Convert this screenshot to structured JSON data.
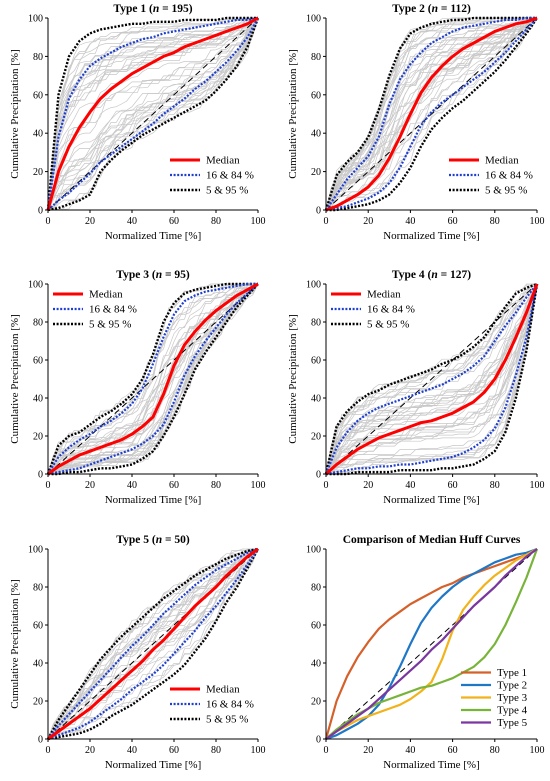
{
  "colors": {
    "median": "#ff0000",
    "p16_84": "#1f3fd0",
    "p5_95": "#000000",
    "events": "#c8c8c8",
    "diag": "#000000",
    "type1": "#d5602a",
    "type2": "#1f77c8",
    "type3": "#f2b21a",
    "type4": "#78b43a",
    "type5": "#7a37a0"
  },
  "chart_data": [
    {
      "type": "line",
      "title": "Type 1",
      "n": "195",
      "xlabel": "Normalized Time [%]",
      "ylabel": "Cumulative Precipitation [%]",
      "xlim": [
        0,
        100
      ],
      "ylim": [
        0,
        100
      ],
      "xticks": [
        "0",
        "20",
        "40",
        "60",
        "80",
        "100"
      ],
      "yticks": [
        "0",
        "20",
        "40",
        "60",
        "80",
        "100"
      ],
      "legend_position": "bottom-right",
      "x": [
        0,
        5,
        10,
        15,
        20,
        25,
        30,
        35,
        40,
        45,
        50,
        55,
        60,
        65,
        70,
        75,
        80,
        85,
        90,
        95,
        100
      ],
      "series": [
        {
          "name": "Median",
          "role": "median",
          "values": [
            0,
            20,
            33,
            43,
            51,
            58,
            63,
            67,
            71,
            74,
            77,
            80,
            82,
            85,
            87,
            89,
            91,
            93,
            95,
            97,
            100
          ]
        },
        {
          "role": "p16",
          "values": [
            0,
            5,
            9,
            14,
            19,
            25,
            29,
            33,
            37,
            41,
            45,
            50,
            54,
            58,
            63,
            67,
            72,
            77,
            83,
            90,
            100
          ]
        },
        {
          "name": "16 & 84 %",
          "role": "p84",
          "values": [
            0,
            38,
            58,
            68,
            75,
            79,
            82,
            85,
            87,
            89,
            90,
            92,
            93,
            94,
            95,
            96,
            97,
            98,
            99,
            99,
            100
          ]
        },
        {
          "role": "p5",
          "values": [
            0,
            1,
            3,
            5,
            8,
            20,
            26,
            31,
            35,
            39,
            42,
            45,
            48,
            51,
            54,
            57,
            62,
            68,
            75,
            85,
            100
          ]
        },
        {
          "name": "5 & 95 %",
          "role": "p95",
          "values": [
            0,
            60,
            80,
            88,
            92,
            94,
            95,
            96,
            97,
            97,
            98,
            98,
            98,
            99,
            99,
            99,
            99,
            100,
            100,
            100,
            100
          ]
        }
      ],
      "event_count": 45
    },
    {
      "type": "line",
      "title": "Type 2",
      "n": "112",
      "xlabel": "Normalized Time [%]",
      "ylabel": "Cumulative Precipitation [%]",
      "xlim": [
        0,
        100
      ],
      "ylim": [
        0,
        100
      ],
      "xticks": [
        "0",
        "20",
        "40",
        "60",
        "80",
        "100"
      ],
      "yticks": [
        "0",
        "20",
        "40",
        "60",
        "80",
        "100"
      ],
      "legend_position": "bottom-right",
      "x": [
        0,
        5,
        10,
        15,
        20,
        25,
        30,
        35,
        40,
        45,
        50,
        55,
        60,
        65,
        70,
        75,
        80,
        85,
        90,
        95,
        100
      ],
      "series": [
        {
          "name": "Median",
          "role": "median",
          "values": [
            0,
            2,
            5,
            8,
            12,
            18,
            27,
            38,
            50,
            61,
            69,
            75,
            80,
            84,
            87,
            90,
            93,
            95,
            97,
            98,
            100
          ]
        },
        {
          "role": "p16",
          "values": [
            0,
            1,
            2,
            4,
            6,
            9,
            14,
            22,
            33,
            44,
            51,
            56,
            60,
            64,
            68,
            72,
            77,
            82,
            88,
            94,
            100
          ]
        },
        {
          "name": "16 & 84 %",
          "role": "p84",
          "values": [
            0,
            8,
            16,
            22,
            28,
            38,
            55,
            68,
            76,
            82,
            87,
            90,
            93,
            95,
            96,
            97,
            98,
            99,
            99,
            100,
            100
          ]
        },
        {
          "role": "p5",
          "values": [
            0,
            0,
            1,
            2,
            3,
            5,
            8,
            14,
            22,
            33,
            42,
            48,
            53,
            57,
            62,
            67,
            72,
            78,
            85,
            92,
            100
          ]
        },
        {
          "name": "5 & 95 %",
          "role": "p95",
          "values": [
            0,
            18,
            25,
            30,
            38,
            52,
            70,
            84,
            92,
            95,
            97,
            98,
            99,
            99,
            100,
            100,
            100,
            100,
            100,
            100,
            100
          ]
        }
      ],
      "event_count": 40
    },
    {
      "type": "line",
      "title": "Type 3",
      "n": "95",
      "xlabel": "Normalized Time [%]",
      "ylabel": "Cumulative Precipitation [%]",
      "xlim": [
        0,
        100
      ],
      "ylim": [
        0,
        100
      ],
      "xticks": [
        "0",
        "20",
        "40",
        "60",
        "80",
        "100"
      ],
      "yticks": [
        "0",
        "20",
        "40",
        "60",
        "80",
        "100"
      ],
      "legend_position": "top-left",
      "x": [
        0,
        5,
        10,
        15,
        20,
        25,
        30,
        35,
        40,
        45,
        50,
        55,
        60,
        65,
        70,
        75,
        80,
        85,
        90,
        95,
        100
      ],
      "series": [
        {
          "name": "Median",
          "role": "median",
          "values": [
            0,
            4,
            7,
            10,
            12,
            14,
            16,
            18,
            21,
            25,
            30,
            42,
            57,
            68,
            75,
            81,
            86,
            90,
            94,
            97,
            100
          ]
        },
        {
          "role": "p16",
          "values": [
            0,
            1,
            2,
            3,
            5,
            7,
            9,
            11,
            13,
            16,
            20,
            26,
            38,
            52,
            62,
            70,
            77,
            84,
            90,
            95,
            100
          ]
        },
        {
          "name": "16 & 84 %",
          "role": "p84",
          "values": [
            0,
            9,
            14,
            18,
            21,
            25,
            28,
            32,
            37,
            45,
            58,
            72,
            84,
            91,
            94,
            96,
            97,
            98,
            99,
            100,
            100
          ]
        },
        {
          "role": "p5",
          "values": [
            0,
            0,
            1,
            1,
            2,
            3,
            3,
            4,
            5,
            8,
            12,
            20,
            30,
            42,
            55,
            64,
            72,
            80,
            88,
            94,
            100
          ]
        },
        {
          "name": "5 & 95 %",
          "role": "p95",
          "values": [
            0,
            15,
            20,
            22,
            26,
            30,
            33,
            37,
            42,
            50,
            63,
            80,
            90,
            95,
            97,
            98,
            99,
            100,
            100,
            100,
            100
          ]
        }
      ],
      "event_count": 38
    },
    {
      "type": "line",
      "title": "Type 4",
      "n": "127",
      "xlabel": "Normalized Time [%]",
      "ylabel": "Cumulative Precipitation [%]",
      "xlim": [
        0,
        100
      ],
      "ylim": [
        0,
        100
      ],
      "xticks": [
        "0",
        "20",
        "40",
        "60",
        "80",
        "100"
      ],
      "yticks": [
        "0",
        "20",
        "40",
        "60",
        "80",
        "100"
      ],
      "legend_position": "top-left",
      "x": [
        0,
        5,
        10,
        15,
        20,
        25,
        30,
        35,
        40,
        45,
        50,
        55,
        60,
        65,
        70,
        75,
        80,
        85,
        90,
        95,
        100
      ],
      "series": [
        {
          "name": "Median",
          "role": "median",
          "values": [
            0,
            5,
            9,
            13,
            16,
            19,
            21,
            23,
            25,
            27,
            28,
            30,
            32,
            35,
            38,
            43,
            50,
            60,
            72,
            85,
            100
          ]
        },
        {
          "role": "p16",
          "values": [
            0,
            1,
            2,
            3,
            3,
            4,
            4,
            5,
            5,
            6,
            7,
            8,
            9,
            11,
            14,
            18,
            24,
            35,
            52,
            72,
            100
          ]
        },
        {
          "name": "16 & 84 %",
          "role": "p84",
          "values": [
            0,
            14,
            22,
            28,
            32,
            35,
            37,
            39,
            41,
            43,
            45,
            47,
            50,
            53,
            57,
            62,
            70,
            78,
            85,
            93,
            100
          ]
        },
        {
          "role": "p5",
          "values": [
            0,
            0,
            0,
            1,
            1,
            1,
            1,
            2,
            2,
            2,
            2,
            3,
            3,
            4,
            5,
            8,
            12,
            22,
            40,
            65,
            100
          ]
        },
        {
          "name": "5 & 95 %",
          "role": "p95",
          "values": [
            0,
            25,
            33,
            38,
            42,
            44,
            47,
            49,
            51,
            53,
            55,
            58,
            60,
            63,
            67,
            72,
            80,
            88,
            95,
            98,
            100
          ]
        }
      ],
      "event_count": 42
    },
    {
      "type": "line",
      "title": "Type 5",
      "n": "50",
      "xlabel": "Normalized Time [%]",
      "ylabel": "Cumulative Precipitation [%]",
      "xlim": [
        0,
        100
      ],
      "ylim": [
        0,
        100
      ],
      "xticks": [
        "0",
        "20",
        "40",
        "60",
        "80",
        "100"
      ],
      "yticks": [
        "0",
        "20",
        "40",
        "60",
        "80",
        "100"
      ],
      "legend_position": "bottom-right",
      "x": [
        0,
        5,
        10,
        15,
        20,
        25,
        30,
        35,
        40,
        45,
        50,
        55,
        60,
        65,
        70,
        75,
        80,
        85,
        90,
        95,
        100
      ],
      "series": [
        {
          "name": "Median",
          "role": "median",
          "values": [
            0,
            4,
            8,
            12,
            16,
            21,
            26,
            31,
            36,
            41,
            47,
            52,
            58,
            64,
            70,
            75,
            80,
            86,
            91,
            96,
            100
          ]
        },
        {
          "role": "p16",
          "values": [
            0,
            2,
            4,
            6,
            9,
            13,
            17,
            21,
            26,
            30,
            34,
            39,
            45,
            51,
            57,
            64,
            70,
            77,
            84,
            92,
            100
          ]
        },
        {
          "name": "16 & 84 %",
          "role": "p84",
          "values": [
            0,
            7,
            13,
            19,
            25,
            31,
            37,
            43,
            49,
            54,
            60,
            66,
            71,
            76,
            81,
            85,
            89,
            92,
            95,
            98,
            100
          ]
        },
        {
          "role": "p5",
          "values": [
            0,
            1,
            2,
            3,
            5,
            8,
            12,
            15,
            18,
            22,
            26,
            30,
            34,
            39,
            46,
            53,
            62,
            72,
            80,
            90,
            100
          ]
        },
        {
          "name": "5 & 95 %",
          "role": "p95",
          "values": [
            0,
            10,
            18,
            26,
            34,
            42,
            48,
            54,
            59,
            64,
            69,
            74,
            78,
            82,
            86,
            89,
            92,
            95,
            97,
            99,
            100
          ]
        }
      ],
      "event_count": 30
    },
    {
      "type": "line",
      "title": "Comparison of Median Huff Curves",
      "xlabel": "Normalized Time [%]",
      "ylabel": "",
      "xlim": [
        0,
        100
      ],
      "ylim": [
        0,
        100
      ],
      "xticks": [
        "0",
        "20",
        "40",
        "60",
        "80",
        "100"
      ],
      "yticks": [
        "0",
        "20",
        "40",
        "60",
        "80",
        "100"
      ],
      "legend_position": "bottom-right",
      "x": [
        0,
        5,
        10,
        15,
        20,
        25,
        30,
        35,
        40,
        45,
        50,
        55,
        60,
        65,
        70,
        75,
        80,
        85,
        90,
        95,
        100
      ],
      "series": [
        {
          "name": "Type 1",
          "color_key": "type1",
          "values": [
            0,
            20,
            33,
            43,
            51,
            58,
            63,
            67,
            71,
            74,
            77,
            80,
            82,
            85,
            87,
            89,
            91,
            93,
            95,
            97,
            100
          ]
        },
        {
          "name": "Type 2",
          "color_key": "type2",
          "values": [
            0,
            2,
            5,
            8,
            12,
            18,
            27,
            38,
            50,
            61,
            69,
            75,
            80,
            84,
            87,
            90,
            93,
            95,
            97,
            98,
            100
          ]
        },
        {
          "name": "Type 3",
          "color_key": "type3",
          "values": [
            0,
            4,
            7,
            10,
            12,
            14,
            16,
            18,
            21,
            25,
            30,
            42,
            57,
            68,
            75,
            81,
            86,
            90,
            94,
            97,
            100
          ]
        },
        {
          "name": "Type 4",
          "color_key": "type4",
          "values": [
            0,
            5,
            9,
            13,
            16,
            19,
            21,
            23,
            25,
            27,
            28,
            30,
            32,
            35,
            38,
            43,
            50,
            60,
            72,
            85,
            100
          ]
        },
        {
          "name": "Type 5",
          "color_key": "type5",
          "values": [
            0,
            4,
            8,
            12,
            16,
            21,
            26,
            31,
            36,
            41,
            47,
            52,
            58,
            64,
            70,
            75,
            80,
            86,
            91,
            96,
            100
          ]
        }
      ]
    }
  ]
}
